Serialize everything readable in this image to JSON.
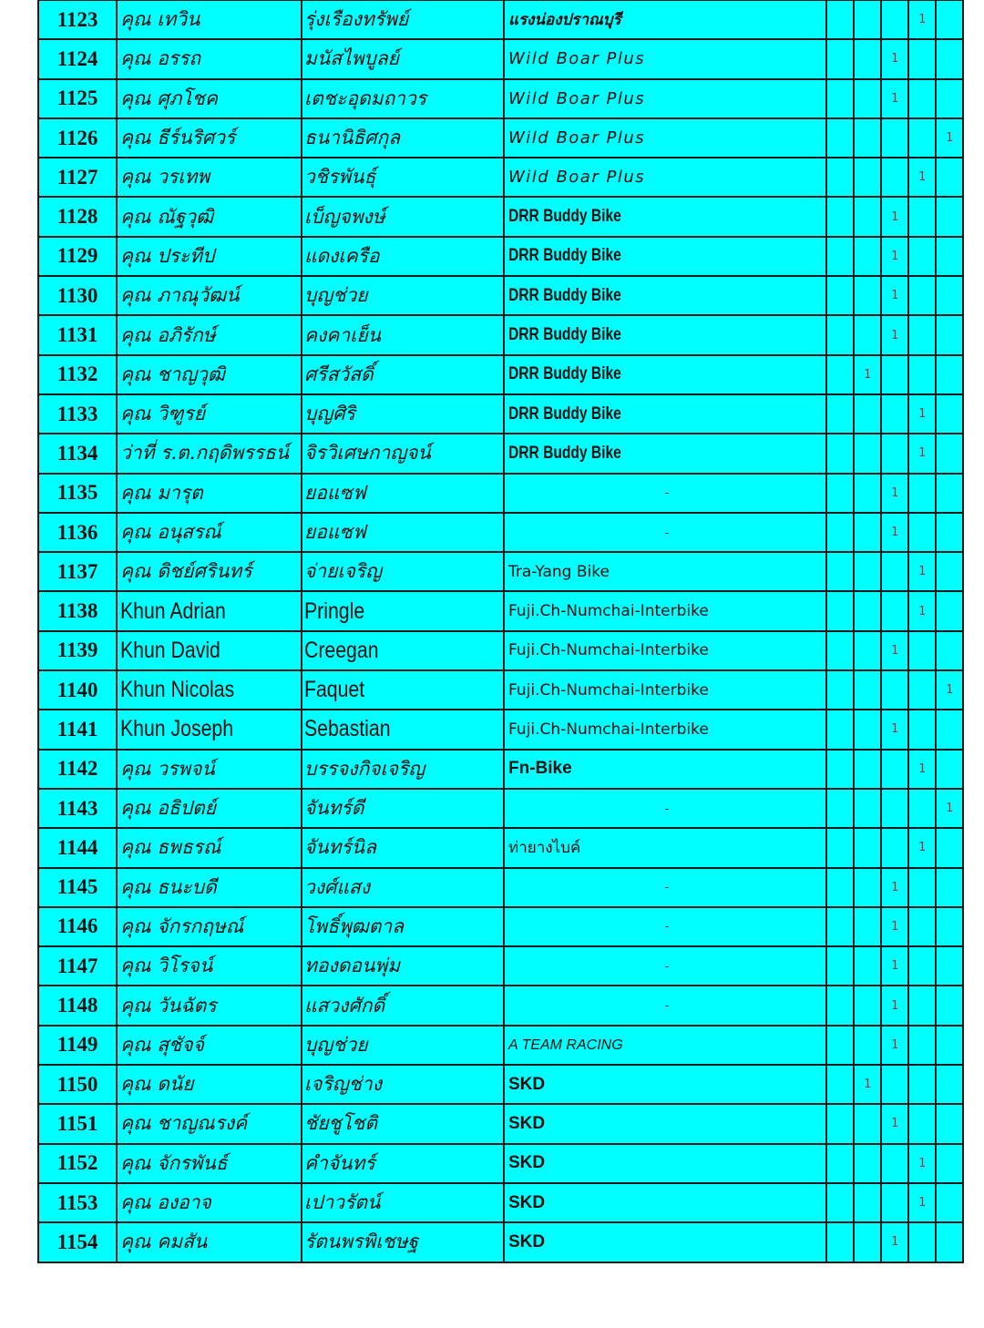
{
  "colors": {
    "cell_background": "#00ffff",
    "grid_line": "#1a1a1a"
  },
  "rows": [
    {
      "no": "1123",
      "first": "คุณ เทวิน",
      "last": "รุ่งเรืองทรัพย์",
      "team": "แรงน่องปราณบุรี",
      "style": "thai",
      "mark": 4
    },
    {
      "no": "1124",
      "first": "คุณ อรรถ",
      "last": "มนัสไพบูลย์",
      "team": "Wild Boar Plus",
      "style": "comic",
      "mark": 3
    },
    {
      "no": "1125",
      "first": "คุณ ศุภโชค",
      "last": "เตชะอุดมถาวร",
      "team": "Wild Boar Plus",
      "style": "comic",
      "mark": 3
    },
    {
      "no": "1126",
      "first": "คุณ ธีร์นริศวร์",
      "last": "ธนานิธิศกุล",
      "team": "Wild Boar Plus",
      "style": "comic",
      "mark": 5
    },
    {
      "no": "1127",
      "first": "คุณ วรเทพ",
      "last": "วชิรพันธุ์",
      "team": "Wild Boar Plus",
      "style": "comic",
      "mark": 4
    },
    {
      "no": "1128",
      "first": "คุณ ณัฐวุฒิ",
      "last": "เบ็ญจพงษ์",
      "team": "DRR Buddy Bike",
      "style": "cond",
      "mark": 3
    },
    {
      "no": "1129",
      "first": "คุณ ประทีป",
      "last": "แดงเครือ",
      "team": "DRR Buddy Bike",
      "style": "cond",
      "mark": 3
    },
    {
      "no": "1130",
      "first": "คุณ ภาณุวัฒน์",
      "last": "บุญช่วย",
      "team": "DRR Buddy Bike",
      "style": "cond",
      "mark": 3
    },
    {
      "no": "1131",
      "first": "คุณ อภิรักษ์",
      "last": "คงคาเย็น",
      "team": "DRR Buddy Bike",
      "style": "cond",
      "mark": 3
    },
    {
      "no": "1132",
      "first": "คุณ ชาญวุฒิ",
      "last": "ศรีสวัสดิ์",
      "team": "DRR Buddy Bike",
      "style": "cond",
      "mark": 2
    },
    {
      "no": "1133",
      "first": "คุณ วิฑูรย์",
      "last": "บุญศิริ",
      "team": "DRR Buddy Bike",
      "style": "cond",
      "mark": 4
    },
    {
      "no": "1134",
      "first": "ว่าที่ ร.ต.กฤดิพรรธน์",
      "last": "จิรวิเศษกาญจน์",
      "team": "DRR Buddy Bike",
      "style": "cond",
      "mark": 4
    },
    {
      "no": "1135",
      "first": "คุณ มารุต",
      "last": "ยอแซฟ",
      "team": "-",
      "style": "dash",
      "mark": 3
    },
    {
      "no": "1136",
      "first": "คุณ อนุสรณ์",
      "last": "ยอแซฟ",
      "team": "-",
      "style": "dash",
      "mark": 3
    },
    {
      "no": "1137",
      "first": "คุณ ดิชย์ศรินทร์",
      "last": "จ่ายเจริญ",
      "team": "Tra-Yang Bike",
      "style": "plain",
      "mark": 4
    },
    {
      "no": "1138",
      "first": "Khun Adrian",
      "last": "Pringle",
      "team": "Fuji.Ch-Numchai-Interbike",
      "style": "plain",
      "mark": 4,
      "latin": true
    },
    {
      "no": "1139",
      "first": "Khun David",
      "last": "Creegan",
      "team": "Fuji.Ch-Numchai-Interbike",
      "style": "plain",
      "mark": 3,
      "latin": true
    },
    {
      "no": "1140",
      "first": "Khun Nicolas",
      "last": "Faquet",
      "team": "Fuji.Ch-Numchai-Interbike",
      "style": "plain",
      "mark": 5,
      "latin": true
    },
    {
      "no": "1141",
      "first": "Khun Joseph",
      "last": "Sebastian",
      "team": "Fuji.Ch-Numchai-Interbike",
      "style": "plain",
      "mark": 3,
      "latin": true
    },
    {
      "no": "1142",
      "first": "คุณ วรพจน์",
      "last": "บรรจงกิจเจริญ",
      "team": "Fn-Bike",
      "style": "bold",
      "mark": 4
    },
    {
      "no": "1143",
      "first": "คุณ อธิปตย์",
      "last": "จันทร์ดี",
      "team": "-",
      "style": "dash",
      "mark": 5
    },
    {
      "no": "1144",
      "first": "คุณ ธพธรณ์",
      "last": "จันทร์นิล",
      "team": "ท่ายางไบค์",
      "style": "plain",
      "mark": 4
    },
    {
      "no": "1145",
      "first": "คุณ ธนะบดี",
      "last": "วงศ์แสง",
      "team": "-",
      "style": "dash",
      "mark": 3
    },
    {
      "no": "1146",
      "first": "คุณ จักรกฤษณ์",
      "last": "โพธิ์พุฒตาล",
      "team": "-",
      "style": "dash",
      "mark": 3
    },
    {
      "no": "1147",
      "first": "คุณ วิโรจน์",
      "last": "ทองดอนพุ่ม",
      "team": "-",
      "style": "dash",
      "mark": 3
    },
    {
      "no": "1148",
      "first": "คุณ วันฉัตร",
      "last": "แสวงศักดิ์",
      "team": "-",
      "style": "dash",
      "mark": 3
    },
    {
      "no": "1149",
      "first": "คุณ สุชัจจ์",
      "last": "บุญช่วย",
      "team": "A TEAM RACING",
      "style": "ital",
      "mark": 3
    },
    {
      "no": "1150",
      "first": "คุณ ดนัย",
      "last": "เจริญช่าง",
      "team": "SKD",
      "style": "bold",
      "mark": 2
    },
    {
      "no": "1151",
      "first": "คุณ ชาญณรงค์",
      "last": "ชัยชูโชติ",
      "team": "SKD",
      "style": "bold",
      "mark": 3
    },
    {
      "no": "1152",
      "first": "คุณ จักรพันธ์",
      "last": "คำจันทร์",
      "team": "SKD",
      "style": "bold",
      "mark": 4
    },
    {
      "no": "1153",
      "first": "คุณ องอาจ",
      "last": "เปาวรัตน์",
      "team": "SKD",
      "style": "bold",
      "mark": 4
    },
    {
      "no": "1154",
      "first": "คุณ คมสัน",
      "last": "รัตนพรพิเชษฐ",
      "team": "SKD",
      "style": "bold",
      "mark": 3
    }
  ],
  "mark_value": "1"
}
